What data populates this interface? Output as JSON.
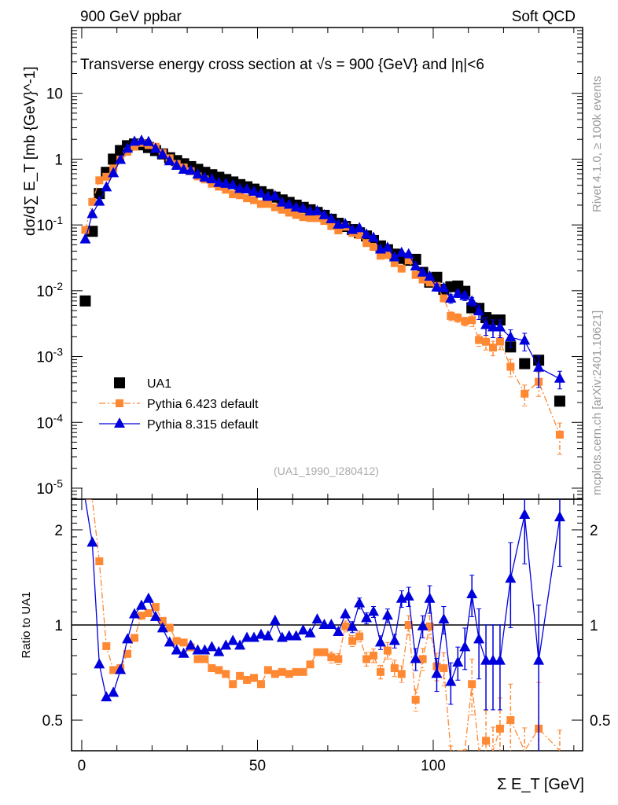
{
  "header": {
    "left": "900 GeV ppbar",
    "right": "Soft QCD"
  },
  "side_text": {
    "rivet": "Rivet 4.1.0, ≥ 100k events",
    "mcplots": "mcplots.cern.ch [arXiv:2401.10621]"
  },
  "colors": {
    "ua1": "#000000",
    "pythia6": "#ff8833",
    "pythia8": "#0000dd",
    "side_text": "#999999"
  },
  "chart_data": [
    {
      "type": "scatter",
      "panel": "main",
      "title": "Transverse energy cross section at √s = 900 {GeV} and |η|<6",
      "ylabel": "dσ/d∑ E_T [mb {GeV}^-1]",
      "yscale": "log",
      "ylim": [
        6.8e-06,
        100
      ],
      "xlim": [
        -2.9,
        142.5
      ],
      "yticks": [
        {
          "v": 1e-05,
          "label": "10^-5"
        },
        {
          "v": 0.0001,
          "label": "10^-4"
        },
        {
          "v": 0.001,
          "label": "10^-3"
        },
        {
          "v": 0.01,
          "label": "10^-2"
        },
        {
          "v": 0.1,
          "label": "10^-1"
        },
        {
          "v": 1,
          "label": "1"
        },
        {
          "v": 10,
          "label": "10"
        }
      ],
      "annotation": "(UA1_1990_I280412)",
      "legend_position": "lower-left",
      "x": [
        1,
        3,
        5,
        7,
        9,
        11,
        13,
        15,
        17,
        19,
        21,
        23,
        25,
        27,
        29,
        31,
        33,
        35,
        37,
        39,
        41,
        43,
        45,
        47,
        49,
        51,
        53,
        55,
        57,
        59,
        61,
        63,
        65,
        67,
        69,
        71,
        73,
        75,
        77,
        79,
        81,
        83,
        85,
        87,
        89,
        91,
        93,
        95,
        97,
        99,
        101,
        103,
        105,
        107,
        109,
        111,
        113,
        115,
        117,
        119,
        122,
        126,
        130,
        136
      ],
      "series": [
        {
          "name": "UA1",
          "marker": "square",
          "values": [
            0.007,
            0.08,
            0.3,
            0.63,
            1.0,
            1.35,
            1.6,
            1.7,
            1.65,
            1.5,
            1.35,
            1.2,
            1.05,
            0.95,
            0.85,
            0.77,
            0.7,
            0.63,
            0.58,
            0.53,
            0.49,
            0.45,
            0.41,
            0.38,
            0.35,
            0.32,
            0.29,
            0.265,
            0.24,
            0.22,
            0.2,
            0.185,
            0.17,
            0.155,
            0.14,
            0.122,
            0.106,
            0.095,
            0.085,
            0.076,
            0.068,
            0.058,
            0.048,
            0.042,
            0.036,
            0.031,
            0.029,
            0.03,
            0.019,
            0.0135,
            0.016,
            0.0105,
            0.0115,
            0.0118,
            0.0098,
            0.0055,
            0.0054,
            0.0039,
            0.0036,
            0.0036,
            0.0014,
            0.00078,
            0.00088,
            0.00021
          ]
        },
        {
          "name": "Pythia 6.423 default",
          "marker": "square-small",
          "line": "dash-dot",
          "ratio": [
            12,
            2.8,
            1.59,
            0.857,
            0.72,
            0.73,
            0.81,
            0.91,
            1.07,
            1.09,
            1.14,
            1.03,
            0.98,
            0.89,
            0.88,
            0.85,
            0.78,
            0.78,
            0.73,
            0.72,
            0.7,
            0.65,
            0.69,
            0.67,
            0.68,
            0.65,
            0.72,
            0.7,
            0.71,
            0.7,
            0.71,
            0.71,
            0.75,
            0.82,
            0.82,
            0.79,
            0.78,
            0.99,
            0.89,
            0.92,
            0.78,
            0.8,
            0.71,
            0.83,
            0.73,
            0.7,
            1.0,
            0.58,
            0.78,
            0.99,
            0.74,
            0.73,
            0.36,
            0.33,
            0.35,
            0.65,
            0.33,
            0.43,
            0.38,
            0.47,
            0.5,
            0.35,
            0.47,
            0.31
          ],
          "rel_err": [
            0.01,
            0.01,
            0.01,
            0.01,
            0.01,
            0.01,
            0.01,
            0.01,
            0.01,
            0.01,
            0.01,
            0.01,
            0.01,
            0.01,
            0.01,
            0.01,
            0.01,
            0.01,
            0.01,
            0.01,
            0.015,
            0.015,
            0.02,
            0.02,
            0.02,
            0.02,
            0.02,
            0.02,
            0.02,
            0.02,
            0.025,
            0.03,
            0.03,
            0.03,
            0.03,
            0.04,
            0.04,
            0.04,
            0.04,
            0.04,
            0.05,
            0.05,
            0.05,
            0.06,
            0.06,
            0.06,
            0.07,
            0.08,
            0.08,
            0.08,
            0.1,
            0.12,
            0.15,
            0.15,
            0.15,
            0.2,
            0.2,
            0.25,
            0.25,
            0.25,
            0.3,
            0.35,
            0.4,
            0.5
          ]
        },
        {
          "name": "Pythia 8.315 default",
          "marker": "triangle",
          "line": "solid",
          "ratio": [
            8.6,
            1.82,
            0.75,
            0.59,
            0.61,
            0.72,
            0.9,
            1.08,
            1.15,
            1.21,
            1.06,
            0.975,
            0.88,
            0.83,
            0.81,
            0.86,
            0.83,
            0.83,
            0.85,
            0.82,
            0.86,
            0.89,
            0.86,
            0.91,
            0.91,
            0.93,
            0.92,
            1.03,
            0.91,
            0.92,
            0.92,
            0.96,
            0.94,
            1.04,
            1.0,
            1.0,
            0.95,
            1.08,
            0.985,
            1.17,
            1.05,
            1.1,
            0.88,
            1.07,
            0.89,
            1.21,
            1.23,
            0.78,
            0.99,
            1.21,
            0.7,
            1.04,
            0.66,
            0.76,
            0.85,
            1.25,
            0.9,
            0.77,
            0.77,
            0.77,
            1.4,
            2.23,
            0.77,
            2.19
          ],
          "rel_err": [
            0.01,
            0.01,
            0.01,
            0.01,
            0.01,
            0.01,
            0.01,
            0.01,
            0.01,
            0.01,
            0.01,
            0.01,
            0.01,
            0.01,
            0.01,
            0.01,
            0.01,
            0.01,
            0.01,
            0.01,
            0.015,
            0.015,
            0.015,
            0.02,
            0.02,
            0.02,
            0.02,
            0.02,
            0.02,
            0.02,
            0.02,
            0.025,
            0.025,
            0.025,
            0.03,
            0.03,
            0.03,
            0.03,
            0.04,
            0.04,
            0.04,
            0.04,
            0.05,
            0.05,
            0.05,
            0.06,
            0.07,
            0.08,
            0.08,
            0.1,
            0.12,
            0.1,
            0.15,
            0.12,
            0.15,
            0.15,
            0.25,
            0.3,
            0.3,
            0.3,
            0.3,
            0.3,
            0.5,
            0.3
          ]
        }
      ]
    },
    {
      "type": "line",
      "panel": "ratio",
      "ylabel": "Ratio to UA1",
      "xlabel": "Σ E_T [GeV]",
      "yscale": "log",
      "ylim": [
        0.4,
        2.5
      ],
      "yticks": [
        {
          "v": 0.5,
          "label": "0.5"
        },
        {
          "v": 1,
          "label": "1"
        },
        {
          "v": 2,
          "label": "2"
        }
      ],
      "xticks": [
        {
          "v": 0,
          "label": "0"
        },
        {
          "v": 50,
          "label": "50"
        },
        {
          "v": 100,
          "label": "100"
        }
      ],
      "reference_line": 1
    }
  ]
}
